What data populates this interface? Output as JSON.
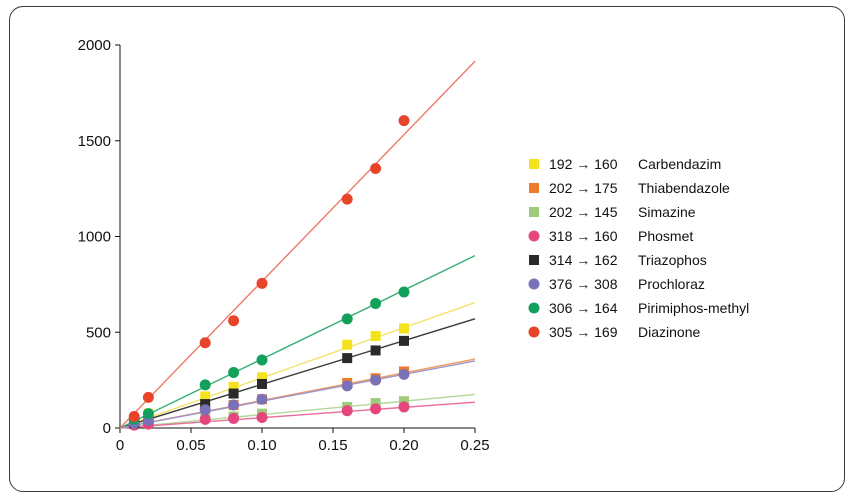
{
  "chart_data": {
    "type": "scatter",
    "title": "",
    "xlabel": "",
    "ylabel": "",
    "xlim": [
      0,
      0.25
    ],
    "ylim": [
      0,
      2000
    ],
    "xticks": [
      0,
      0.05,
      0.1,
      0.15,
      0.2,
      0.25
    ],
    "xtick_labels": [
      "0",
      "0.05",
      "0.10",
      "0.15",
      "0.20",
      "0.25"
    ],
    "yticks": [
      0,
      500,
      1000,
      1500,
      2000
    ],
    "ytick_labels": [
      "0",
      "500",
      "1000",
      "1500",
      "2000"
    ],
    "grid": false,
    "legend_position": "right",
    "x": [
      0.01,
      0.02,
      0.06,
      0.08,
      0.1,
      0.16,
      0.18,
      0.2
    ],
    "series": [
      {
        "transition": "192 → 160",
        "name": "Carbendazim",
        "marker": "square",
        "color": "#f4e21c",
        "line_color": "#f2e46a",
        "values": [
          45,
          75,
          165,
          215,
          265,
          435,
          480,
          520
        ],
        "fit_end": 655
      },
      {
        "transition": "202 → 175",
        "name": "Thiabendazole",
        "marker": "square",
        "color": "#ee7a2a",
        "line_color": "#ef9a5f",
        "values": [
          30,
          40,
          100,
          120,
          150,
          235,
          260,
          295
        ],
        "fit_end": 360
      },
      {
        "transition": "202 → 145",
        "name": "Simazine",
        "marker": "square",
        "color": "#9fcc7a",
        "line_color": "#b3d99a",
        "values": [
          20,
          30,
          55,
          60,
          75,
          110,
          130,
          140
        ],
        "fit_end": 175
      },
      {
        "transition": "318 → 160",
        "name": "Phosmet",
        "marker": "circle",
        "color": "#e6467e",
        "line_color": "#ec6f9b",
        "values": [
          15,
          20,
          45,
          50,
          55,
          90,
          100,
          110
        ],
        "fit_end": 135
      },
      {
        "transition": "314 → 162",
        "name": "Triazophos",
        "marker": "square",
        "color": "#2a2a2a",
        "line_color": "#3a3a3a",
        "values": [
          25,
          50,
          125,
          180,
          230,
          365,
          405,
          455
        ],
        "fit_end": 570
      },
      {
        "transition": "376 → 308",
        "name": "Prochloraz",
        "marker": "circle",
        "color": "#7a72b8",
        "line_color": "#9b95c9",
        "values": [
          25,
          40,
          95,
          120,
          150,
          220,
          250,
          280
        ],
        "fit_end": 350
      },
      {
        "transition": "306 → 164",
        "name": "Pirimiphos-methyl",
        "marker": "circle",
        "color": "#13a05a",
        "line_color": "#38b074",
        "values": [
          45,
          75,
          225,
          290,
          355,
          570,
          650,
          710
        ],
        "fit_end": 900
      },
      {
        "transition": "305 → 169",
        "name": "Diazinone",
        "marker": "circle",
        "color": "#e8442a",
        "line_color": "#ec7a68",
        "values": [
          60,
          160,
          445,
          560,
          755,
          1195,
          1355,
          1605
        ],
        "fit_end": 1915
      }
    ]
  }
}
